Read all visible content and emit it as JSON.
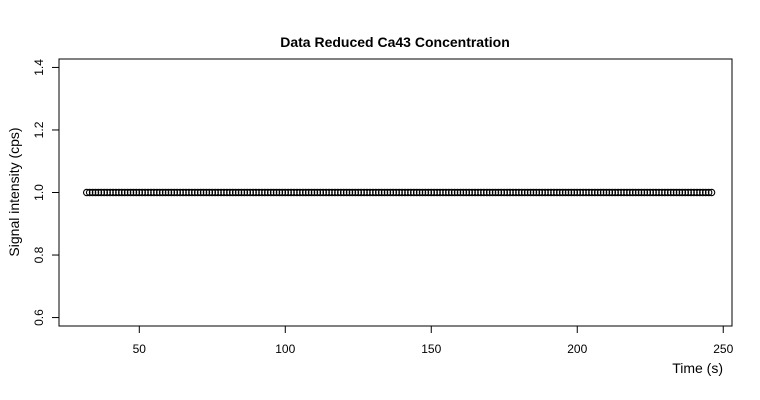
{
  "chart_data": {
    "type": "scatter",
    "title": "Data Reduced Ca43 Concentration",
    "xlabel": "Time (s)",
    "ylabel": "Signal intensity (cps)",
    "xlim": [
      22.5,
      253
    ],
    "ylim": [
      0.573,
      1.427
    ],
    "x_ticks": [
      50,
      100,
      150,
      200,
      250
    ],
    "y_ticks": [
      0.6,
      0.8,
      1.0,
      1.2,
      1.4
    ],
    "x_tick_labels": [
      "50",
      "100",
      "150",
      "200",
      "250"
    ],
    "y_tick_labels": [
      "0.6",
      "0.8",
      "1.0",
      "1.2",
      "1.4"
    ],
    "grid": false,
    "series": [
      {
        "x_start": 32,
        "x_end": 246,
        "x_step": 1,
        "y": 1.0,
        "marker": "open-circle",
        "color": "#000000"
      }
    ]
  }
}
